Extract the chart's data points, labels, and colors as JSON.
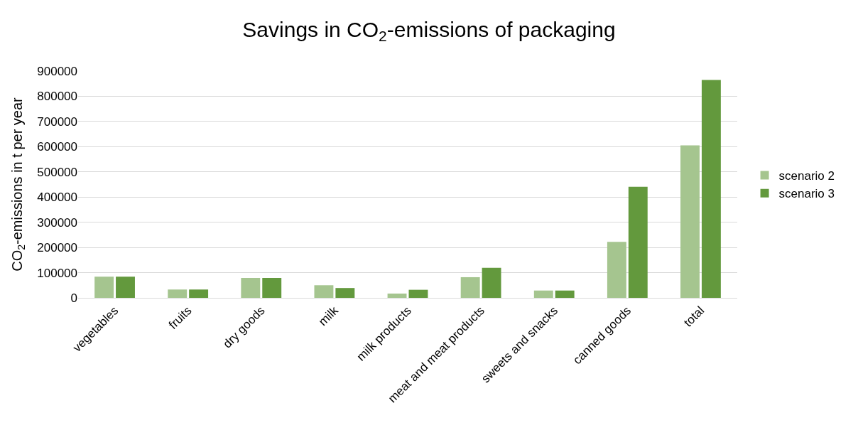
{
  "chart_data": {
    "type": "bar",
    "title": "Savings in CO$_{2}$-emissions of packaging",
    "ylabel": "CO$_{2}$-emissions in t per year",
    "categories": [
      "vegetables",
      "fruits",
      "dry goods",
      "milk",
      "milk products",
      "meat and meat products",
      "sweets and snacks",
      "canned goods",
      "total"
    ],
    "series": [
      {
        "name": "scenario 2",
        "color": "#a5c58f",
        "values": [
          84000,
          33000,
          79000,
          50000,
          17000,
          82000,
          29000,
          222000,
          605000
        ]
      },
      {
        "name": "scenario 3",
        "color": "#63993d",
        "values": [
          84000,
          33000,
          79000,
          39000,
          32000,
          119000,
          29000,
          441000,
          865000
        ]
      }
    ],
    "ylim": [
      0,
      900000
    ],
    "yticks": [
      0,
      100000,
      200000,
      300000,
      400000,
      500000,
      600000,
      700000,
      800000,
      900000
    ],
    "grid": "y",
    "legend": "right"
  }
}
